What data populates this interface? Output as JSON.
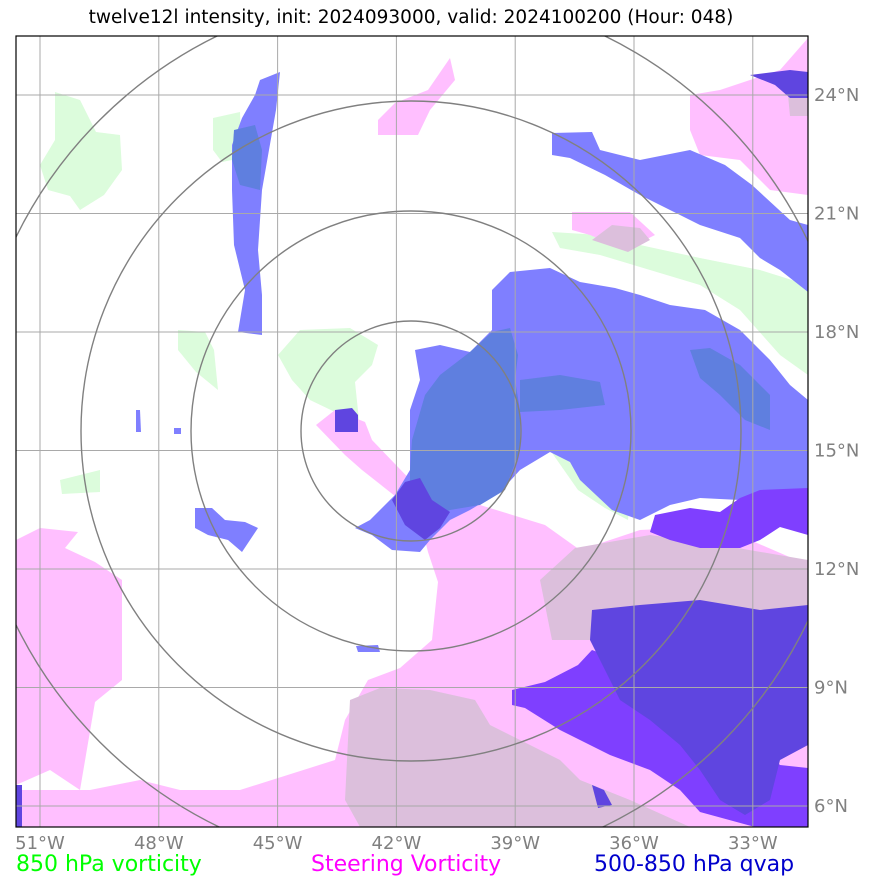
{
  "title": "twelve12l intensity, init: 2024093000, valid: 2024100200 (Hour: 048)",
  "map": {
    "lon_ticks": [
      {
        "value": -51,
        "label": "51°W"
      },
      {
        "value": -48,
        "label": "48°W"
      },
      {
        "value": -45,
        "label": "45°W"
      },
      {
        "value": -42,
        "label": "42°W"
      },
      {
        "value": -39,
        "label": "39°W"
      },
      {
        "value": -36,
        "label": "36°W"
      },
      {
        "value": -33,
        "label": "33°W"
      }
    ],
    "lat_ticks": [
      {
        "value": 24,
        "label": "24°N"
      },
      {
        "value": 21,
        "label": "21°N"
      },
      {
        "value": 18,
        "label": "18°N"
      },
      {
        "value": 15,
        "label": "15°N"
      },
      {
        "value": 12,
        "label": "12°N"
      },
      {
        "value": 9,
        "label": "9°N"
      },
      {
        "value": 6,
        "label": "6°N"
      }
    ],
    "range_rings_count": 4
  },
  "legend": {
    "vort850": {
      "label": "850 hPa vorticity",
      "color": "#00ff00"
    },
    "steering": {
      "label": "Steering Vorticity",
      "color": "#ff00ff"
    },
    "qvap": {
      "label": "500-850 hPa qvap",
      "color": "#0000cc"
    }
  },
  "colors": {
    "vort850_fill": "#dcfcdc",
    "steering_fill": "#ffbfff",
    "steering_overlap": "#dcbfdc",
    "qvap_fill": "#7f7fff",
    "qvap_dark": "#5f45e0",
    "qvap_purple": "#7f3fff",
    "qvap_blend": "#5f7fdf",
    "grid": "#a9a9a9",
    "ring": "#808080"
  }
}
